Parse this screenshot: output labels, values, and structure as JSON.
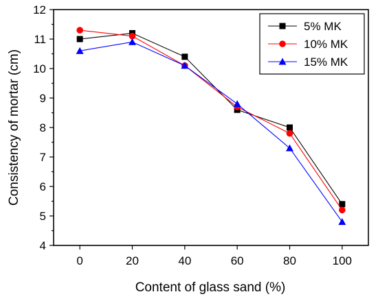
{
  "chart_data": {
    "type": "line",
    "title": "",
    "xlabel": "Content of glass sand (%)",
    "ylabel": "Consistency of mortar (cm)",
    "x": [
      0,
      20,
      40,
      60,
      80,
      100
    ],
    "xlim": [
      -10,
      110
    ],
    "ylim": [
      4,
      12
    ],
    "xticks": [
      0,
      20,
      40,
      60,
      80,
      100
    ],
    "yticks": [
      4,
      5,
      6,
      7,
      8,
      9,
      10,
      11,
      12
    ],
    "grid": false,
    "legend_position": "top-right",
    "series": [
      {
        "name": "5% MK",
        "color": "#000000",
        "marker": "square",
        "values": [
          11.0,
          11.2,
          10.4,
          8.6,
          8.0,
          5.4
        ]
      },
      {
        "name": "10% MK",
        "color": "#ff0000",
        "marker": "circle",
        "values": [
          11.3,
          11.1,
          10.1,
          8.7,
          7.8,
          5.2
        ]
      },
      {
        "name": "15% MK",
        "color": "#0000ff",
        "marker": "triangle",
        "values": [
          10.6,
          10.9,
          10.1,
          8.8,
          7.3,
          4.8
        ]
      }
    ]
  }
}
